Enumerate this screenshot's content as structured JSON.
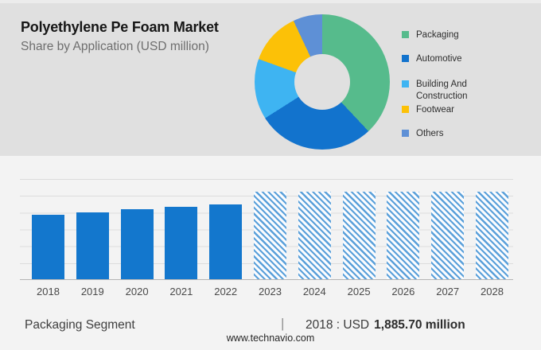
{
  "header": {
    "title": "Polyethylene Pe Foam Market",
    "subtitle": "Share by Application (USD million)"
  },
  "footer": {
    "segment_label": "Packaging Segment",
    "separator": "|",
    "value_prefix": "2018 : USD",
    "value_bold": "1,885.70 million",
    "website": "www.technavio.com"
  },
  "palette": {
    "top_bg": "#e0e0e0",
    "bottom_bg": "#f3f3f3",
    "bar_blue": "#1377cd",
    "hatch_line": "#5aa0da",
    "gridline": "#dcdcdc",
    "axis_line": "#b5b5b5"
  },
  "chart_data": [
    {
      "type": "pie",
      "variant": "donut",
      "legend_position": "right",
      "labels": [
        "Packaging",
        "Automotive",
        "Building And Construction",
        "Footwear",
        "Others"
      ],
      "values_pct": [
        38,
        28,
        14.5,
        12.5,
        7
      ],
      "colors": [
        "#56bb8c",
        "#1273cd",
        "#3eb4f2",
        "#fcc107",
        "#5e90d6"
      ]
    },
    {
      "type": "bar",
      "categories": [
        "2018",
        "2019",
        "2020",
        "2021",
        "2022",
        "2023",
        "2024",
        "2025",
        "2026",
        "2027",
        "2028"
      ],
      "series": [
        {
          "name": "historical",
          "values": [
            1885.7,
            1955,
            2040,
            2110,
            2180,
            null,
            null,
            null,
            null,
            null,
            null
          ]
        },
        {
          "name": "forecast_hatched_placeholder",
          "values": [
            null,
            null,
            null,
            null,
            null,
            2560,
            2560,
            2560,
            2560,
            2560,
            2560
          ]
        }
      ],
      "ylim": [
        0,
        2950
      ],
      "xlabel": "",
      "ylabel": "",
      "grid": true
    }
  ]
}
